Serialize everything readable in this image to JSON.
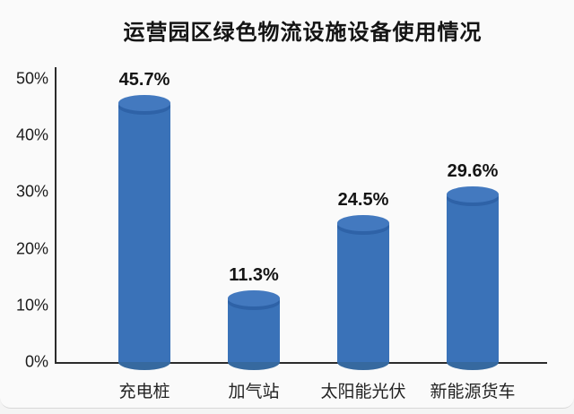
{
  "page": {
    "background_color": "#fafafa"
  },
  "chart_data": {
    "type": "bar",
    "title": "运营园区绿色物流设施设备使用情况",
    "categories": [
      "充电桩",
      "加气站",
      "太阳能光伏",
      "新能源货车"
    ],
    "values": [
      45.7,
      11.3,
      24.5,
      29.6
    ],
    "value_labels": [
      "45.7%",
      "11.3%",
      "24.5%",
      "29.6%"
    ],
    "y_ticks": [
      "50%",
      "40%",
      "30%",
      "20%",
      "10%",
      "0%"
    ],
    "y_tick_values": [
      50,
      40,
      30,
      20,
      10,
      0
    ],
    "ylim": [
      0,
      50
    ],
    "xlabel": "",
    "ylabel": "",
    "grid": false,
    "legend": "none",
    "bar_style": "3d-cylinder",
    "colors": {
      "bar_body": "#3A72B8",
      "bar_top_face": "#4379BF",
      "bar_top_rim_shadow": "#2E62A7",
      "bar_bottom": "#36699F",
      "axis": "#2B2B2B",
      "text": "#141414"
    }
  }
}
